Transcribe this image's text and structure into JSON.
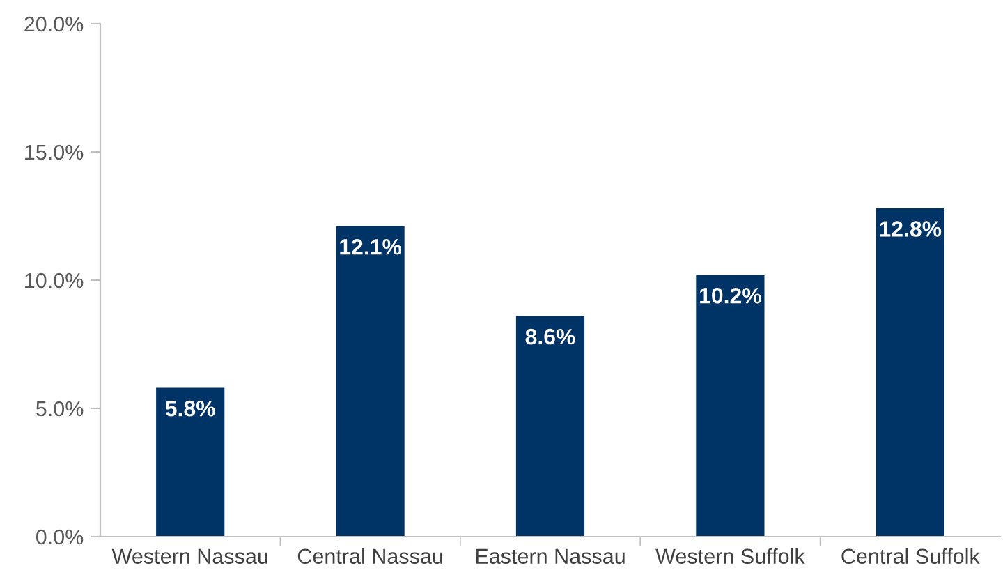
{
  "chart_data": {
    "type": "bar",
    "categories": [
      "Western Nassau",
      "Central Nassau",
      "Eastern Nassau",
      "Western Suffolk",
      "Central Suffolk"
    ],
    "values": [
      5.8,
      12.1,
      8.6,
      10.2,
      12.8
    ],
    "value_labels": [
      "5.8%",
      "12.1%",
      "8.6%",
      "10.2%",
      "12.8%"
    ],
    "color": "#003366",
    "ylim": [
      0,
      20
    ],
    "yticks": [
      {
        "value": 0,
        "label": "0.0%"
      },
      {
        "value": 5,
        "label": "5.0%"
      },
      {
        "value": 10,
        "label": "10.0%"
      },
      {
        "value": 15,
        "label": "15.0%"
      },
      {
        "value": 20,
        "label": "20.0%"
      }
    ],
    "grid": false
  }
}
